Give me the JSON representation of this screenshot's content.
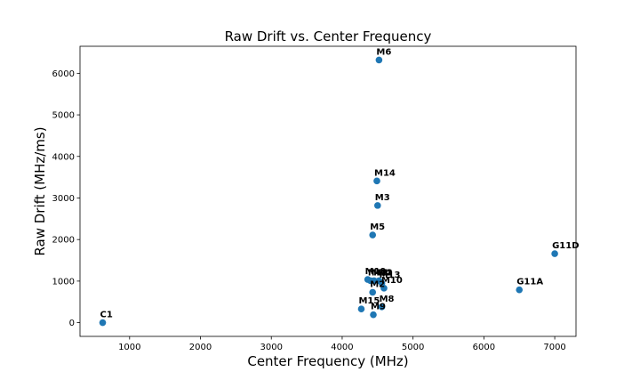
{
  "chart_data": {
    "type": "scatter",
    "title": "Raw Drift vs. Center Frequency",
    "xlabel": "Center Frequency (MHz)",
    "ylabel": "Raw Drift (MHz/ms)",
    "xlim": [
      300,
      7300
    ],
    "ylim": [
      -330,
      6650
    ],
    "xticks": [
      1000,
      2000,
      3000,
      4000,
      5000,
      6000,
      7000
    ],
    "yticks": [
      0,
      1000,
      2000,
      3000,
      4000,
      5000,
      6000
    ],
    "grid": false,
    "marker_color": "#1f77b4",
    "points": [
      {
        "label": "C1",
        "x": 620,
        "y": 0
      },
      {
        "label": "M6",
        "x": 4520,
        "y": 6320
      },
      {
        "label": "M14",
        "x": 4490,
        "y": 3410
      },
      {
        "label": "M3",
        "x": 4500,
        "y": 2820
      },
      {
        "label": "M5",
        "x": 4430,
        "y": 2110
      },
      {
        "label": "M10",
        "x": 4590,
        "y": 830
      },
      {
        "label": "M13",
        "x": 4560,
        "y": 950
      },
      {
        "label": "M4",
        "x": 4520,
        "y": 1010
      },
      {
        "label": "M12",
        "x": 4450,
        "y": 1010
      },
      {
        "label": "M11",
        "x": 4400,
        "y": 1010
      },
      {
        "label": "M19",
        "x": 4360,
        "y": 1040
      },
      {
        "label": "M2",
        "x": 4430,
        "y": 730
      },
      {
        "label": "M15",
        "x": 4270,
        "y": 330
      },
      {
        "label": "M8",
        "x": 4560,
        "y": 380
      },
      {
        "label": "M9",
        "x": 4440,
        "y": 190
      },
      {
        "label": "G11A",
        "x": 6500,
        "y": 790
      },
      {
        "label": "G11D",
        "x": 7000,
        "y": 1660
      }
    ]
  }
}
